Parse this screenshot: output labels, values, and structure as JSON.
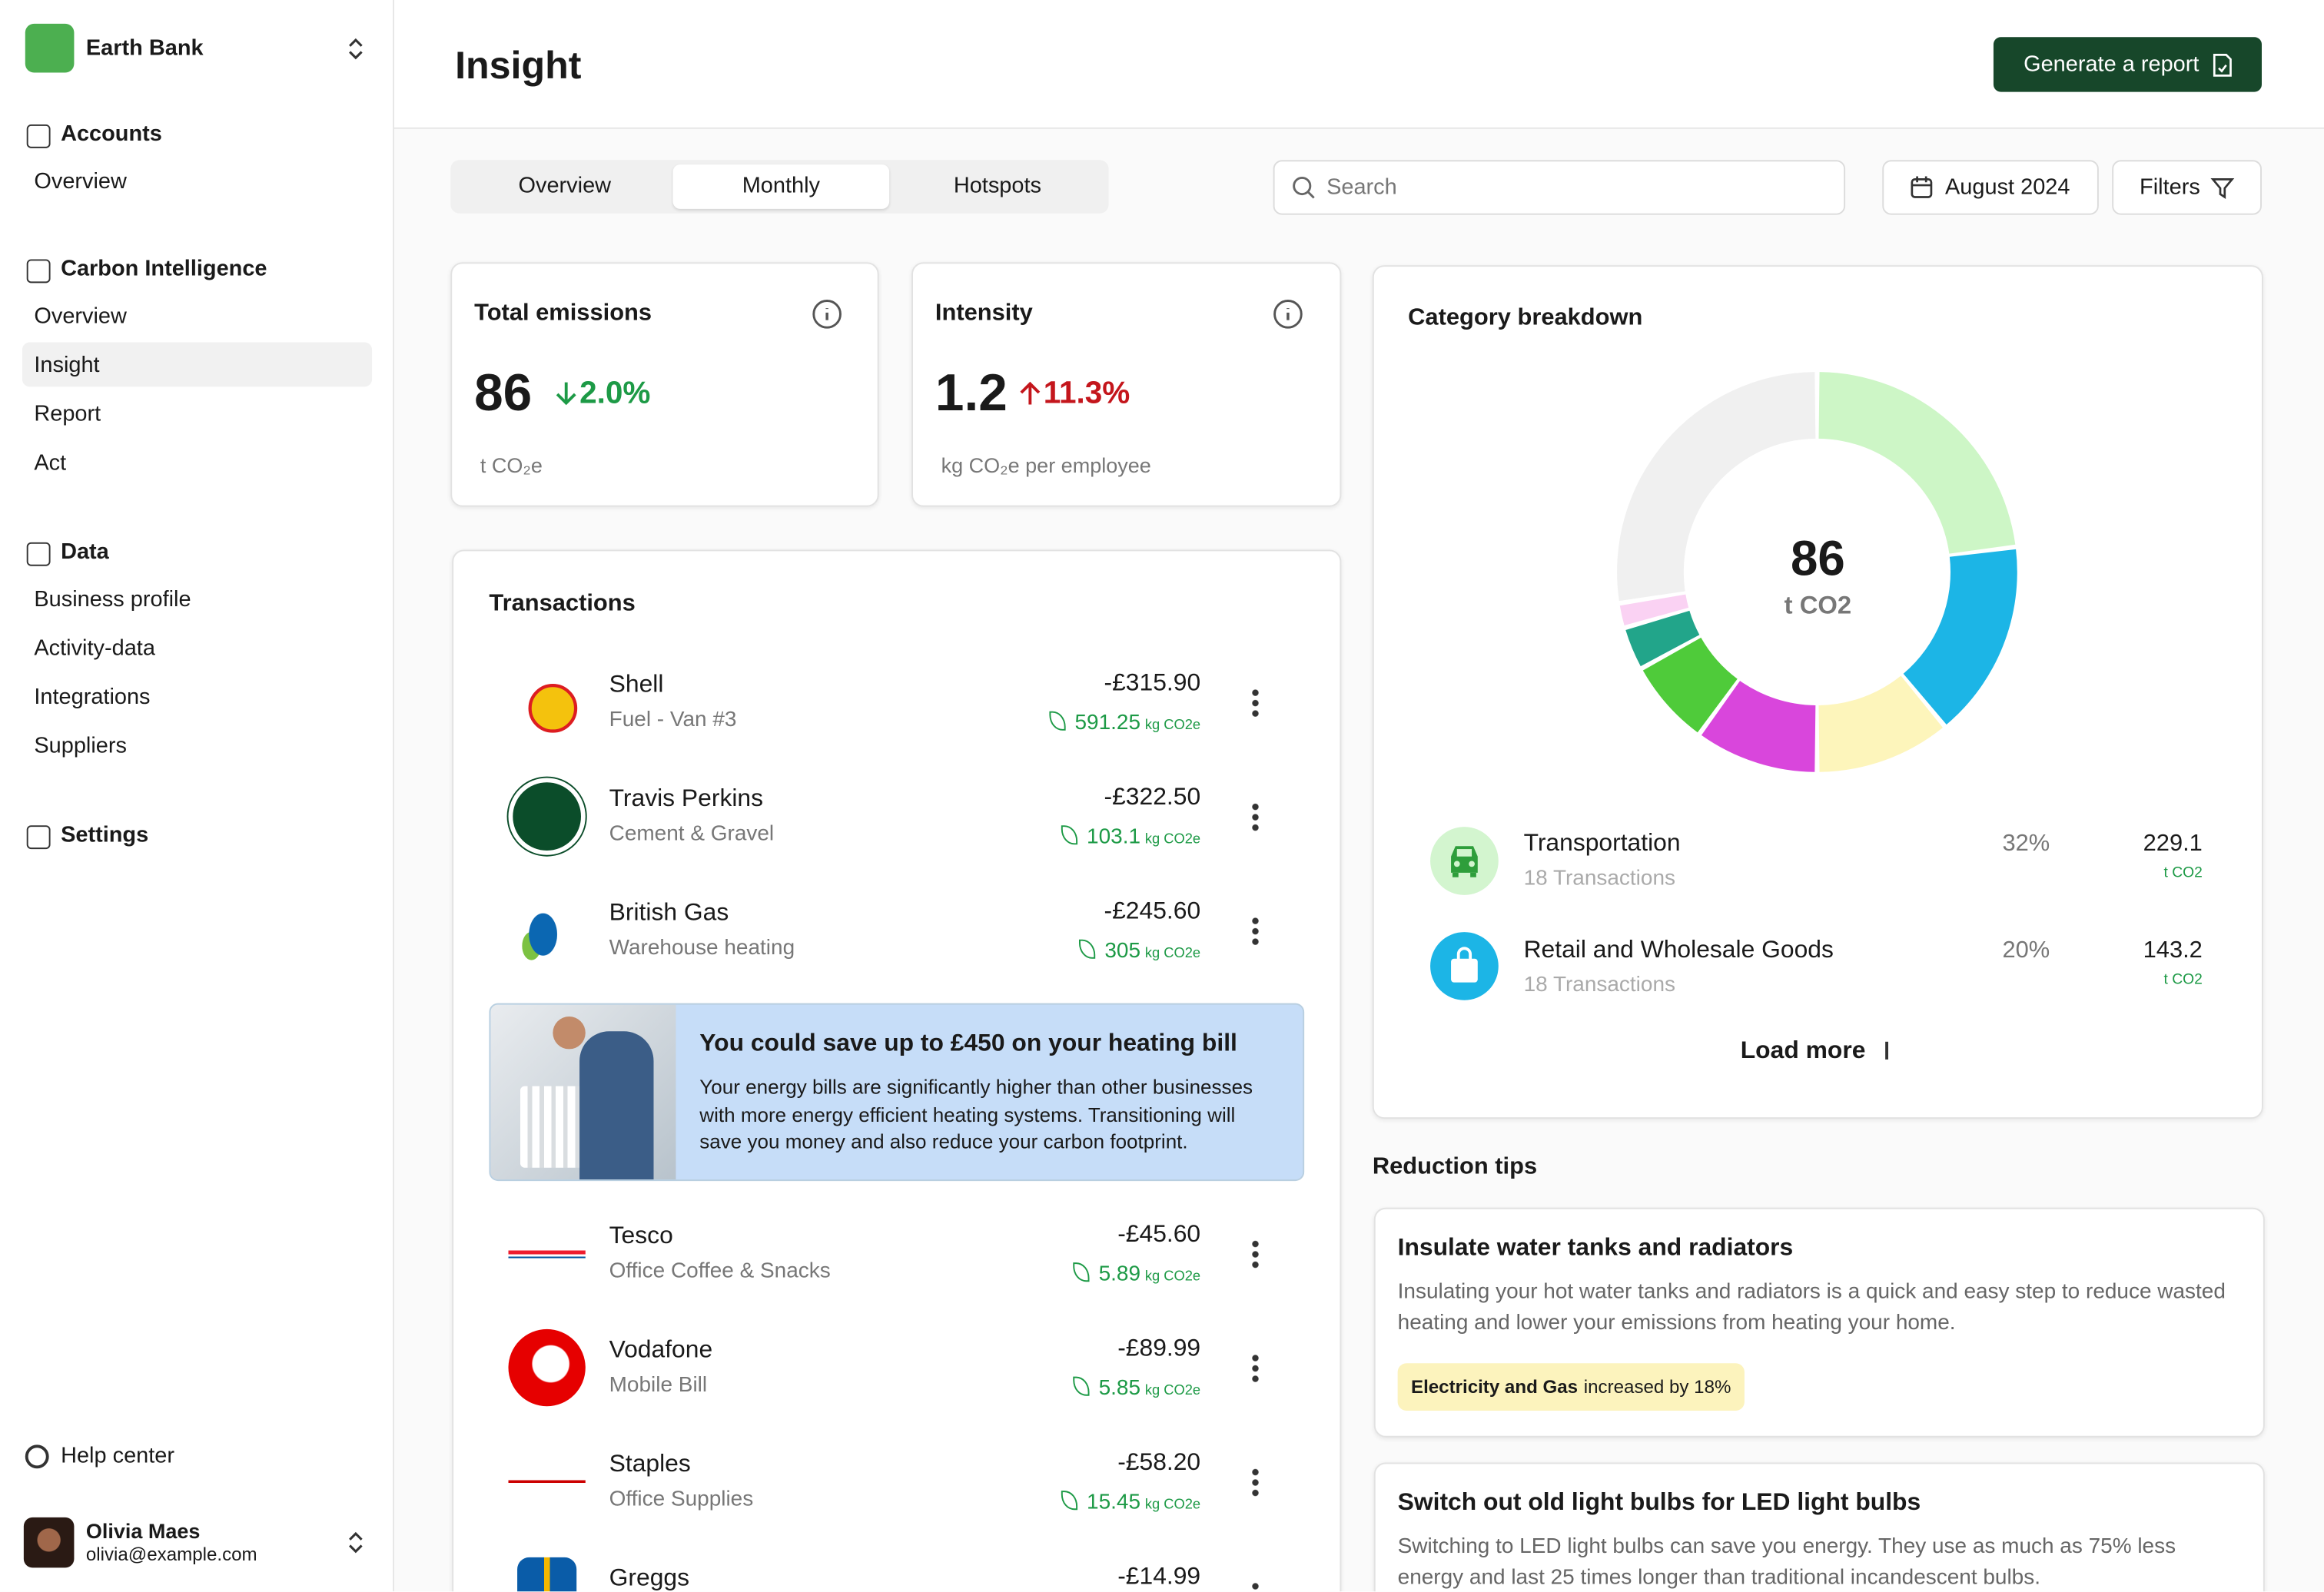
{
  "sidebar": {
    "org": "Earth Bank",
    "sections": [
      {
        "title": "Accounts",
        "items": [
          "Overview"
        ]
      },
      {
        "title": "Carbon Intelligence",
        "items": [
          "Overview",
          "Insight",
          "Report",
          "Act"
        ]
      },
      {
        "title": "Data",
        "items": [
          "Business profile",
          "Activity-data",
          "Integrations",
          "Suppliers"
        ]
      },
      {
        "title": "Settings",
        "items": []
      }
    ],
    "help": "Help center",
    "user": {
      "name": "Olivia Maes",
      "email": "olivia@example.com"
    }
  },
  "header": {
    "title": "Insight",
    "button": "Generate a report"
  },
  "toolbar": {
    "tabs": [
      "Overview",
      "Monthly",
      "Hotspots"
    ],
    "search": "Search",
    "date": "August 2024",
    "filters": "Filters"
  },
  "kpis": [
    {
      "title": "Total emissions",
      "value": "86",
      "change": "2.0%",
      "unit": "t CO₂e"
    },
    {
      "title": "Intensity",
      "value": "1.2",
      "change": "11.3%",
      "unit": "kg CO₂e per employee"
    }
  ],
  "transactions": {
    "title": "Transactions",
    "rows": [
      {
        "merchant": "Shell",
        "detail": "Fuel - Van #3",
        "amount": "-£315.90",
        "emissions": "591.25",
        "unit": "kg CO2e"
      },
      {
        "merchant": "Travis Perkins",
        "detail": "Cement & Gravel",
        "amount": "-£322.50",
        "emissions": "103.1",
        "unit": "kg CO2e"
      },
      {
        "merchant": "British Gas",
        "detail": "Warehouse heating",
        "amount": "-£245.60",
        "emissions": "305",
        "unit": "kg CO2e"
      },
      {
        "merchant": "Tesco",
        "detail": "Office Coffee & Snacks",
        "amount": "-£45.60",
        "emissions": "5.89",
        "unit": "kg CO2e"
      },
      {
        "merchant": "Vodafone",
        "detail": "Mobile Bill",
        "amount": "-£89.99",
        "emissions": "5.85",
        "unit": "kg CO2e"
      },
      {
        "merchant": "Staples",
        "detail": "Office Supplies",
        "amount": "-£58.20",
        "emissions": "15.45",
        "unit": "kg CO2e"
      },
      {
        "merchant": "Greggs",
        "amount": "-£14.99"
      }
    ],
    "promo": {
      "title": "You could save up to £450 on your heating bill",
      "text": "Your energy bills are significantly higher than other businesses with more energy efficient heating systems. Transitioning will save you money and also reduce your carbon footprint."
    }
  },
  "category_breakdown": {
    "title": "Category breakdown",
    "center_value": "86",
    "center_unit": "t CO2",
    "segments": [
      {
        "value": 23,
        "color": "#cdf6c6"
      },
      {
        "value": 16,
        "color": "#1cb5e6"
      },
      {
        "value": 11,
        "color": "#fdf5bb"
      },
      {
        "value": 10,
        "color": "#d946dc"
      },
      {
        "value": 7,
        "color": "#4fcb3a"
      },
      {
        "value": 3.5,
        "color": "#22a58a"
      },
      {
        "value": 2,
        "color": "#fad2f3"
      },
      {
        "value": 27.5,
        "color": "#f0f0f0"
      }
    ],
    "items": [
      {
        "name": "Transportation",
        "count": "18 Transactions",
        "share": "32%",
        "value": "229.1",
        "unit": "t CO2"
      },
      {
        "name": "Retail and Wholesale Goods",
        "count": "18 Transactions",
        "share": "20%",
        "value": "143.2",
        "unit": "t CO2"
      }
    ],
    "load_more": "Load more"
  },
  "reduction_tips": {
    "title": "Reduction tips",
    "tips": [
      {
        "title": "Insulate water tanks and radiators",
        "text": "Insulating your hot water tanks and radiators is a quick and easy step to reduce wasted heating and lower your emissions from heating your home.",
        "badge_bold": "Electricity and Gas",
        "badge_text": "increased by 18%"
      },
      {
        "title": "Switch out old light bulbs for LED light bulbs",
        "text": "Switching to LED light bulbs can save you energy. They use as much as 75% less energy and last 25 times longer than traditional incandescent bulbs."
      }
    ]
  }
}
